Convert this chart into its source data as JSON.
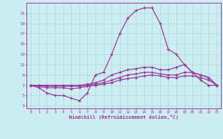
{
  "xlabel": "Windchill (Refroidissement éolien,°C)",
  "background_color": "#cceef2",
  "grid_color": "#aadddd",
  "line_color": "#993399",
  "x_ticks": [
    0,
    1,
    2,
    3,
    4,
    5,
    6,
    7,
    8,
    9,
    10,
    11,
    12,
    13,
    14,
    15,
    16,
    17,
    18,
    19,
    20,
    21,
    22,
    23
  ],
  "y_ticks": [
    3,
    5,
    7,
    9,
    11,
    13,
    15,
    17,
    19,
    21
  ],
  "xlim": [
    -0.5,
    23.5
  ],
  "ylim": [
    2.5,
    23
  ],
  "curve1_x": [
    0,
    1,
    2,
    3,
    4,
    5,
    6,
    7,
    8,
    9,
    10,
    11,
    12,
    13,
    14,
    15,
    16,
    17,
    18,
    19,
    20,
    21,
    22,
    23
  ],
  "curve1_y": [
    7,
    6.5,
    5.5,
    5,
    5,
    4.5,
    4,
    5.5,
    9,
    9.5,
    13,
    17,
    20,
    21.5,
    22,
    22,
    19,
    14,
    13,
    11,
    9.5,
    8,
    7,
    7
  ],
  "curve2_x": [
    0,
    1,
    2,
    3,
    4,
    5,
    6,
    7,
    8,
    9,
    10,
    11,
    12,
    13,
    14,
    15,
    16,
    17,
    18,
    19,
    20,
    21,
    22,
    23
  ],
  "curve2_y": [
    7,
    7,
    7,
    7,
    7,
    7,
    7,
    7.2,
    7.5,
    8,
    9,
    9.5,
    10,
    10.2,
    10.5,
    10.5,
    10,
    10,
    10.5,
    11,
    9.5,
    9,
    8.5,
    7
  ],
  "curve3_x": [
    0,
    1,
    2,
    3,
    4,
    5,
    6,
    7,
    8,
    9,
    10,
    11,
    12,
    13,
    14,
    15,
    16,
    17,
    18,
    19,
    20,
    21,
    22,
    23
  ],
  "curve3_y": [
    7,
    7,
    6.8,
    6.8,
    6.8,
    6.8,
    6.8,
    7,
    7.2,
    7.5,
    8,
    8.5,
    9,
    9.2,
    9.5,
    9.5,
    9.2,
    9,
    9,
    9.5,
    9.5,
    9,
    8.5,
    7
  ],
  "curve4_x": [
    0,
    1,
    2,
    3,
    4,
    5,
    6,
    7,
    8,
    9,
    10,
    11,
    12,
    13,
    14,
    15,
    16,
    17,
    18,
    19,
    20,
    21,
    22,
    23
  ],
  "curve4_y": [
    7,
    6.8,
    6.5,
    6.5,
    6.5,
    6.3,
    6.5,
    6.8,
    7,
    7.2,
    7.5,
    8,
    8.3,
    8.5,
    8.8,
    9,
    8.8,
    8.5,
    8.5,
    8.8,
    8.8,
    8.5,
    8,
    7
  ]
}
